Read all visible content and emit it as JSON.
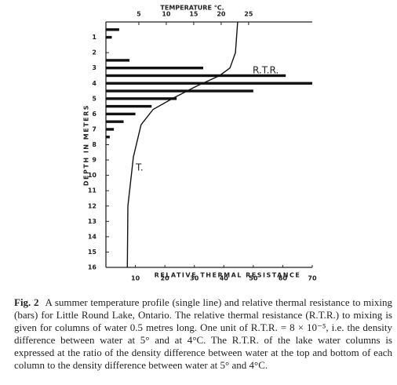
{
  "chart_data": {
    "type": "bar",
    "orientation": "horizontal",
    "x_label": "RELATIVE THERMAL RESISTANCE",
    "x2_label": "TEMPERATURE °C.",
    "y_label": "DEPTH IN METERS",
    "xlim": [
      0,
      70
    ],
    "xticks": [
      10,
      20,
      30,
      40,
      50,
      60,
      70
    ],
    "x2lim": [
      -1,
      36.6
    ],
    "x2ticks": [
      5,
      10,
      15,
      20,
      25
    ],
    "ylim": [
      0,
      16
    ],
    "yticks": [
      1,
      2,
      3,
      4,
      5,
      6,
      7,
      8,
      9,
      10,
      11,
      12,
      13,
      14,
      15,
      16
    ],
    "y_inverted": true,
    "series": [
      {
        "name": "R.T.R.",
        "type": "bar",
        "color": "#111111",
        "depths": [
          0.5,
          1,
          2.5,
          3,
          3.5,
          4,
          4.5,
          5,
          5.5,
          6,
          6.5,
          7,
          7.5
        ],
        "values": [
          4.5,
          2,
          8,
          33,
          61,
          70,
          50,
          24,
          15.5,
          10,
          6,
          2.7,
          1.3
        ]
      },
      {
        "name": "T.",
        "type": "line",
        "axis": "x2",
        "color": "#111111",
        "depths": [
          0,
          2,
          3,
          3.5,
          4.2,
          5,
          5.7,
          6.7,
          8.8,
          12,
          16
        ],
        "values": [
          23,
          22.6,
          21.6,
          19.7,
          15.4,
          11.1,
          7.6,
          5.4,
          4,
          3,
          2.9
        ]
      }
    ],
    "caption": {
      "label": "Fig. 2",
      "text": "A summer temperature profile (single line) and relative thermal resistance to mixing (bars) for Little Round Lake, Ontario. The relative thermal resistance (R.T.R.) to mixing is given for columns of water 0.5 metres long. One unit of R.T.R. = 8 × 10⁻⁵, i.e. the density difference between water at 5° and at 4°C. The R.T.R. of the lake water columns is expressed at the ratio of the density difference between water at the top and bottom of each column to the density difference between water at 5° and 4°C."
    }
  }
}
